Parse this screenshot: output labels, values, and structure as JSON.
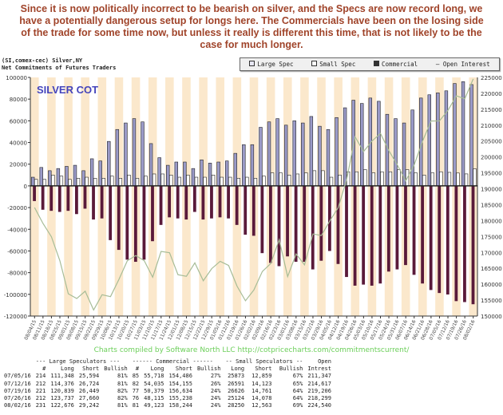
{
  "headline": "Since it is now politically incorrect to be bearish on silver, and the Specs are now record long, we have a potentially dangerous setup for longs here. The Commercials have been on the losing side of the trade for some time now, but unless it really is different this time, that is not likely to be the case for much longer.",
  "source_line1": "(SI,comex-cec) Silver,NY",
  "source_line2": "Net Commitments of Futures Traders",
  "credit": "Charts compiled by Software North LLC  http://cotpricecharts.com/commitmentscurrent/",
  "colors": {
    "large_spec": "#9a9ac8",
    "small_spec": "#ffffff",
    "commercial": "#5a1a3a",
    "open_interest": "#a6bc96",
    "band": "#fbe8cc",
    "headline": "#a0442a",
    "title": "#4444bb"
  },
  "chart_data": {
    "type": "bar",
    "title": "SILVER COT",
    "legend": [
      "Large Spec",
      "Small Spec",
      "Commercial",
      "Open Interest"
    ],
    "legend_placement": "top-right",
    "ylim": [
      -120000,
      100000
    ],
    "y2lim": [
      150000,
      225000
    ],
    "yticks": [
      "100000",
      "80000",
      "60000",
      "40000",
      "20000",
      "0",
      "-20000",
      "-40000",
      "-60000",
      "-80000",
      "-100000",
      "-120000"
    ],
    "y2ticks": [
      "225000",
      "220000",
      "215000",
      "210000",
      "205000",
      "200000",
      "195000",
      "190000",
      "185000",
      "180000",
      "175000",
      "170000",
      "165000",
      "160000",
      "155000",
      "150000"
    ],
    "categories": [
      "08/04/15",
      "08/11/15",
      "08/18/15",
      "08/25/15",
      "09/01/15",
      "09/08/15",
      "09/15/15",
      "09/22/15",
      "09/29/15",
      "10/06/15",
      "10/13/15",
      "10/20/15",
      "10/27/15",
      "11/03/15",
      "11/10/15",
      "11/17/15",
      "11/24/15",
      "12/01/15",
      "12/08/15",
      "12/15/15",
      "12/22/15",
      "12/29/15",
      "01/05/16",
      "01/12/16",
      "01/19/16",
      "01/26/16",
      "02/02/16",
      "02/09/16",
      "02/16/16",
      "02/23/16",
      "03/01/16",
      "03/08/16",
      "03/15/16",
      "03/22/16",
      "03/29/16",
      "04/05/16",
      "04/12/16",
      "04/19/16",
      "04/26/16",
      "05/03/16",
      "05/10/16",
      "05/17/16",
      "05/24/16",
      "05/31/16",
      "06/07/16",
      "06/14/16",
      "06/21/16",
      "06/28/16",
      "07/05/16",
      "07/12/16",
      "07/19/16",
      "07/26/16",
      "08/02/16"
    ],
    "series": [
      {
        "name": "Large Spec",
        "axis": "left",
        "values": [
          8000,
          17000,
          14000,
          16000,
          18000,
          19000,
          14000,
          25000,
          23000,
          41000,
          52000,
          58000,
          62000,
          59000,
          39000,
          26000,
          19000,
          22000,
          22000,
          16000,
          24000,
          21000,
          22000,
          23000,
          30000,
          38000,
          38000,
          54000,
          59000,
          62000,
          56000,
          60000,
          58000,
          64000,
          55000,
          52000,
          63000,
          72000,
          79000,
          76000,
          81000,
          78000,
          66000,
          62000,
          58000,
          70000,
          81000,
          84000,
          85754,
          87652,
          94390,
          96077,
          93434
        ]
      },
      {
        "name": "Small Spec",
        "axis": "left",
        "values": [
          6000,
          6000,
          10000,
          9000,
          6000,
          7000,
          8000,
          7000,
          7000,
          9000,
          7000,
          10000,
          7000,
          9000,
          11000,
          11000,
          10000,
          8000,
          10000,
          8000,
          8000,
          10000,
          8000,
          8000,
          7000,
          8000,
          7000,
          9000,
          12000,
          12000,
          10000,
          11000,
          12000,
          14000,
          14000,
          8000,
          10000,
          13000,
          13000,
          15000,
          12000,
          13000,
          13000,
          15000,
          15000,
          12000,
          10000,
          12000,
          13014,
          12468,
          11865,
          11046,
          15687
        ]
      },
      {
        "name": "Commercial",
        "axis": "left",
        "values": [
          -14000,
          -22000,
          -23000,
          -24000,
          -23000,
          -26000,
          -21000,
          -31000,
          -30000,
          -50000,
          -59000,
          -68000,
          -70000,
          -68000,
          -51000,
          -36000,
          -29000,
          -30000,
          -31000,
          -24000,
          -31000,
          -30000,
          -29000,
          -30000,
          -36000,
          -45000,
          -46000,
          -62000,
          -71000,
          -74000,
          -65000,
          -70000,
          -70000,
          -77000,
          -69000,
          -60000,
          -72000,
          -84000,
          -92000,
          -91000,
          -92000,
          -90000,
          -79000,
          -77000,
          -73000,
          -82000,
          -90000,
          -96000,
          -98768,
          -100120,
          -106255,
          -107123,
          -109121
        ]
      },
      {
        "name": "Open Interest",
        "axis": "right",
        "type": "line",
        "values": [
          184100,
          179100,
          174900,
          167400,
          157000,
          155500,
          157800,
          151900,
          156700,
          156100,
          161500,
          167400,
          169000,
          167400,
          162200,
          170300,
          169900,
          163000,
          162500,
          166700,
          161100,
          164900,
          167200,
          165900,
          159400,
          154800,
          158200,
          164000,
          166500,
          174000,
          162400,
          169500,
          166100,
          175800,
          175300,
          179900,
          184100,
          193000,
          206300,
          201700,
          205000,
          207400,
          202000,
          197500,
          192500,
          197500,
          205000,
          211300,
          211347,
          214617,
          219206,
          218299,
          224540
        ]
      }
    ]
  },
  "table": {
    "group_headers": [
      "--- Large Speculators ---",
      "------ Commercial ------",
      "-- Small Speculators --",
      "Open"
    ],
    "columns": [
      "",
      "#",
      "Long",
      "Short",
      "Bullish",
      "#",
      "Long",
      "Short",
      "Bullish",
      "Long",
      "Short",
      "Bullish",
      "Intrest"
    ],
    "rows": [
      [
        "07/05/16",
        "214",
        "111,348",
        "25,594",
        "81%",
        "85",
        "55,718",
        "154,486",
        "27%",
        "25873",
        "12,859",
        "67%",
        "211,347"
      ],
      [
        "07/12/16",
        "212",
        "114,376",
        "26,724",
        "81%",
        "82",
        "54,035",
        "154,155",
        "26%",
        "26591",
        "14,123",
        "65%",
        "214,617"
      ],
      [
        "07/19/16",
        "221",
        "120,839",
        "26,449",
        "82%",
        "77",
        "50,379",
        "156,634",
        "24%",
        "26626",
        "14,761",
        "64%",
        "219,206"
      ],
      [
        "07/26/16",
        "212",
        "123,737",
        "27,660",
        "82%",
        "76",
        "48,115",
        "155,238",
        "24%",
        "25124",
        "14,078",
        "64%",
        "218,299"
      ],
      [
        "08/02/16",
        "231",
        "122,676",
        "29,242",
        "81%",
        "81",
        "49,123",
        "158,244",
        "24%",
        "28250",
        "12,563",
        "69%",
        "224,540"
      ]
    ]
  }
}
